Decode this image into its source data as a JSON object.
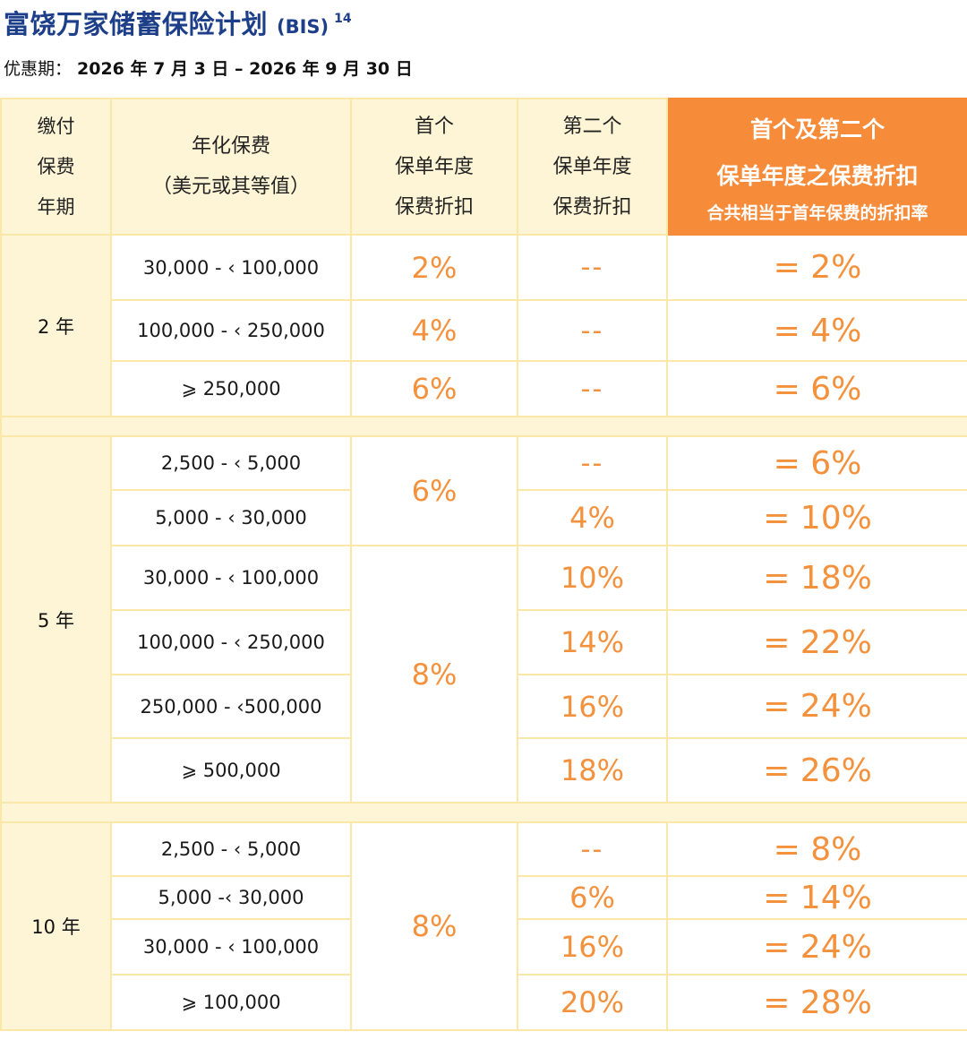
{
  "title": {
    "main": "富饶万家储蓄保险计划",
    "code": "(BIS)",
    "superscript": "14"
  },
  "period": {
    "label": "优惠期：",
    "value": "2026 年 7 月 3 日 – 2026 年 9 月 30 日"
  },
  "headers": {
    "term": [
      "缴付",
      "保费",
      "年期"
    ],
    "premium": [
      "年化保费",
      "（美元或其等值）"
    ],
    "first": [
      "首个",
      "保单年度",
      "保费折扣"
    ],
    "second": [
      "第二个",
      "保单年度",
      "保费折扣"
    ],
    "total": [
      "首个及第二个",
      "保单年度之保费折扣",
      "合共相当于首年保费的折扣率"
    ]
  },
  "groups": [
    {
      "term": "2 年",
      "rows": [
        {
          "range": "30,000 - ‹ 100,000",
          "first": "2%",
          "second": "--",
          "total": "= 2%"
        },
        {
          "range": "100,000 - ‹ 250,000",
          "first": "4%",
          "second": "--",
          "total": "= 4%"
        },
        {
          "range": "⩾ 250,000",
          "first": "6%",
          "second": "--",
          "total": "= 6%"
        }
      ]
    },
    {
      "term": "5 年",
      "first_merged": [
        "6%",
        "8%"
      ],
      "rows": [
        {
          "range": "2,500 - ‹ 5,000",
          "second": "--",
          "total": "= 6%"
        },
        {
          "range": "5,000 - ‹ 30,000",
          "second": "4%",
          "total": "= 10%"
        },
        {
          "range": "30,000 - ‹ 100,000",
          "second": "10%",
          "total": "= 18%"
        },
        {
          "range": "100,000 - ‹ 250,000",
          "second": "14%",
          "total": "= 22%"
        },
        {
          "range": "250,000 - ‹500,000",
          "second": "16%",
          "total": "= 24%"
        },
        {
          "range": "⩾ 500,000",
          "second": "18%",
          "total": "= 26%"
        }
      ]
    },
    {
      "term": "10 年",
      "first_merged": [
        "8%"
      ],
      "rows": [
        {
          "range": "2,500 - ‹ 5,000",
          "second": "--",
          "total": "= 8%"
        },
        {
          "range": "5,000 -‹ 30,000",
          "second": "6%",
          "total": "= 14%"
        },
        {
          "range": "30,000 - ‹ 100,000",
          "second": "16%",
          "total": "= 24%"
        },
        {
          "range": "⩾ 100,000",
          "second": "20%",
          "total": "= 28%"
        }
      ]
    }
  ]
}
